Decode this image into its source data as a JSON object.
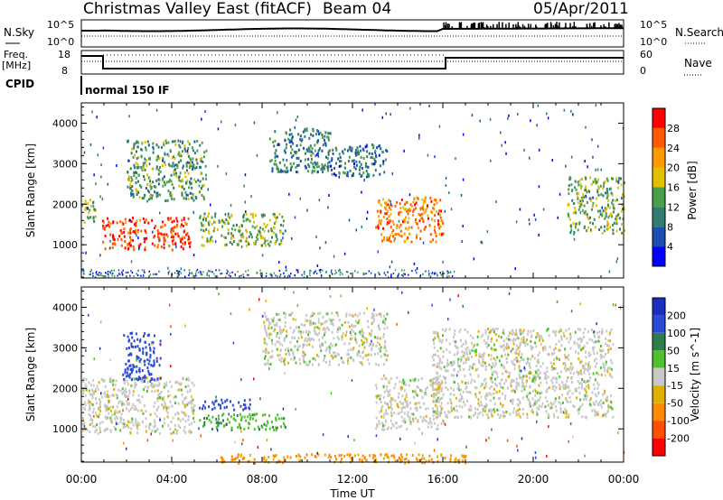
{
  "header": {
    "station": "Christmas Valley East (fitACF)",
    "beam": "Beam 04",
    "date": "05/Apr/2011"
  },
  "panels": {
    "nsky": {
      "label": "N.Sky",
      "left_ticks": [
        "10^5",
        "10^0"
      ],
      "right_ticks": [
        "10^5",
        "10^0"
      ],
      "right_label": "N.Search"
    },
    "freq": {
      "label_line1": "Freq.",
      "label_line2": "[MHz]",
      "left_ticks": [
        "18",
        "8"
      ],
      "right_ticks": [
        "60",
        "0"
      ],
      "right_label": "Nave"
    },
    "cpid": {
      "label": "CPID",
      "value": "normal 150 IF"
    }
  },
  "x_axis": {
    "label": "Time UT",
    "ticks": [
      "00:00",
      "04:00",
      "08:00",
      "12:00",
      "16:00",
      "20:00",
      "00:00"
    ]
  },
  "power_panel": {
    "ylabel": "Slant Range [km]",
    "yticks": [
      "1000",
      "2000",
      "3000",
      "4000"
    ],
    "colorbar_label": "Power [dB]",
    "colorbar_ticks": [
      "4",
      "8",
      "12",
      "16",
      "20",
      "24",
      "28"
    ],
    "colors": [
      "#0000ff",
      "#1a4fb0",
      "#2e7d6e",
      "#4aa04a",
      "#e0c000",
      "#ff9900",
      "#ff5a00",
      "#ff0000"
    ]
  },
  "velocity_panel": {
    "ylabel": "Slant Range [km]",
    "yticks": [
      "1000",
      "2000",
      "3000",
      "4000"
    ],
    "colorbar_label": "Velocity [m s^-1]",
    "colorbar_ticks": [
      "200",
      "100",
      "50",
      "15",
      "-15",
      "-50",
      "-100",
      "-200"
    ],
    "colors": [
      "#1a2fc0",
      "#2a4ad8",
      "#2e7d4e",
      "#50c030",
      "#c8c8c8",
      "#e0b000",
      "#ff8c00",
      "#ff5000",
      "#ff0000"
    ]
  },
  "chart_data": [
    {
      "type": "heatmap",
      "title": "Power [dB]",
      "xlabel": "Time UT",
      "ylabel": "Slant Range [km]",
      "xlim": [
        0,
        24
      ],
      "ylim": [
        180,
        4500
      ],
      "colorbar_range": [
        0,
        30
      ],
      "features": [
        {
          "name": "",
          "t": [
            0.0,
            0.6
          ],
          "range": [
            1500,
            2200
          ],
          "value": 14
        },
        {
          "name": "",
          "t": [
            0.9,
            4.8
          ],
          "range": [
            900,
            1700
          ],
          "value": 26
        },
        {
          "name": "",
          "t": [
            2.0,
            5.5
          ],
          "range": [
            2100,
            3600
          ],
          "value": 12
        },
        {
          "name": "",
          "t": [
            5.2,
            9.0
          ],
          "range": [
            1000,
            1800
          ],
          "value": 14
        },
        {
          "name": "",
          "t": [
            8.3,
            11.0
          ],
          "range": [
            2800,
            3900
          ],
          "value": 10
        },
        {
          "name": "",
          "t": [
            11.0,
            13.5
          ],
          "range": [
            2700,
            3500
          ],
          "value": 8
        },
        {
          "name": "",
          "t": [
            13.0,
            16.0
          ],
          "range": [
            1100,
            2200
          ],
          "value": 22
        },
        {
          "name": "",
          "t": [
            21.5,
            24.0
          ],
          "range": [
            1300,
            2700
          ],
          "value": 14
        }
      ]
    },
    {
      "type": "heatmap",
      "title": "Velocity [m s^-1]",
      "xlabel": "Time UT",
      "ylabel": "Slant Range [km]",
      "xlim": [
        0,
        24
      ],
      "ylim": [
        180,
        4500
      ],
      "colorbar_range": [
        -200,
        200
      ],
      "features": [
        {
          "name": "",
          "t": [
            0.0,
            5.0
          ],
          "range": [
            900,
            2300
          ],
          "value": 0
        },
        {
          "name": "",
          "t": [
            1.8,
            3.5
          ],
          "range": [
            2200,
            3400
          ],
          "value": 180
        },
        {
          "name": "",
          "t": [
            5.2,
            7.5
          ],
          "range": [
            1500,
            1750
          ],
          "value": 180
        },
        {
          "name": "",
          "t": [
            5.2,
            9.0
          ],
          "range": [
            1000,
            1400
          ],
          "value": 40
        },
        {
          "name": "",
          "t": [
            8.0,
            13.5
          ],
          "range": [
            2600,
            3900
          ],
          "value": 0
        },
        {
          "name": "",
          "t": [
            13.0,
            16.0
          ],
          "range": [
            1000,
            2300
          ],
          "value": 0
        },
        {
          "name": "",
          "t": [
            15.5,
            23.5
          ],
          "range": [
            1300,
            3500
          ],
          "value": 0
        },
        {
          "name": "",
          "t": [
            6.0,
            17.0
          ],
          "range": [
            180,
            400
          ],
          "value": -60
        }
      ]
    }
  ]
}
